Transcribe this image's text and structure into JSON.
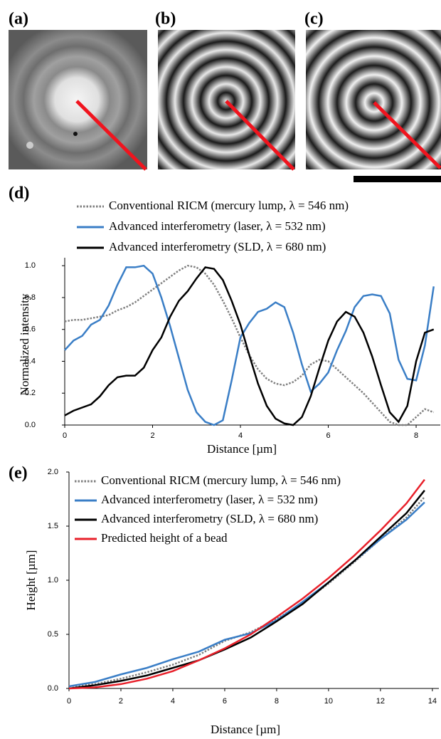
{
  "panel_labels": [
    "(a)",
    "(b)",
    "(c)",
    "(d)",
    "(e)"
  ],
  "chart_data": [
    {
      "type": "line",
      "x_label": "Distance [µm]",
      "y_label": "Normalized intensity",
      "x": [
        0,
        0.2,
        0.4,
        0.6,
        0.8,
        1.0,
        1.2,
        1.4,
        1.6,
        1.8,
        2.0,
        2.2,
        2.4,
        2.6,
        2.8,
        3.0,
        3.2,
        3.4,
        3.6,
        3.8,
        4.0,
        4.2,
        4.4,
        4.6,
        4.8,
        5.0,
        5.2,
        5.4,
        5.6,
        5.8,
        6.0,
        6.2,
        6.4,
        6.6,
        6.8,
        7.0,
        7.2,
        7.4,
        7.6,
        7.8,
        8.0,
        8.2,
        8.4
      ],
      "series": [
        {
          "name": "Conventional RICM (mercury lump, λ = 546 nm)",
          "color": "#808080",
          "style": "dotted",
          "values": [
            0.65,
            0.66,
            0.66,
            0.67,
            0.68,
            0.69,
            0.72,
            0.74,
            0.77,
            0.81,
            0.85,
            0.89,
            0.93,
            0.97,
            1.0,
            0.99,
            0.95,
            0.88,
            0.78,
            0.67,
            0.55,
            0.44,
            0.35,
            0.29,
            0.26,
            0.25,
            0.27,
            0.31,
            0.38,
            0.41,
            0.4,
            0.35,
            0.3,
            0.25,
            0.2,
            0.14,
            0.08,
            0.02,
            0.0,
            0.0,
            0.05,
            0.1,
            0.08
          ]
        },
        {
          "name": "Advanced interferometry (laser, λ = 532 nm)",
          "color": "#3a7ec6",
          "style": "solid",
          "values": [
            0.47,
            0.53,
            0.56,
            0.63,
            0.66,
            0.75,
            0.88,
            0.99,
            0.99,
            1.0,
            0.95,
            0.8,
            0.62,
            0.42,
            0.22,
            0.08,
            0.02,
            0.0,
            0.03,
            0.28,
            0.55,
            0.64,
            0.71,
            0.73,
            0.77,
            0.74,
            0.58,
            0.38,
            0.21,
            0.26,
            0.33,
            0.47,
            0.59,
            0.74,
            0.81,
            0.82,
            0.81,
            0.7,
            0.41,
            0.29,
            0.28,
            0.5,
            0.87
          ]
        },
        {
          "name": "Advanced interferometry (SLD, λ = 680 nm)",
          "color": "#000000",
          "style": "solid",
          "values": [
            0.06,
            0.09,
            0.11,
            0.13,
            0.18,
            0.25,
            0.3,
            0.31,
            0.31,
            0.36,
            0.47,
            0.55,
            0.68,
            0.78,
            0.84,
            0.92,
            0.99,
            0.98,
            0.91,
            0.78,
            0.63,
            0.44,
            0.26,
            0.12,
            0.04,
            0.01,
            0.0,
            0.05,
            0.18,
            0.36,
            0.53,
            0.65,
            0.71,
            0.68,
            0.58,
            0.43,
            0.25,
            0.08,
            0.02,
            0.12,
            0.4,
            0.58,
            0.6
          ]
        }
      ],
      "xlim": [
        0,
        8.55
      ],
      "ylim": [
        0,
        1.05
      ],
      "xticks": [
        0,
        2,
        4,
        6,
        8
      ],
      "yticks": [
        {
          "value": 0,
          "label": "0.0"
        },
        0.2,
        0.4,
        0.6,
        0.8,
        {
          "value": 1,
          "label": "1.0"
        }
      ]
    },
    {
      "type": "line",
      "x_label": "Distance [µm]",
      "y_label": "Height [µm]",
      "x": [
        0,
        1,
        2,
        3,
        4,
        5,
        6,
        7,
        8,
        9,
        10,
        11,
        12,
        13,
        13.7
      ],
      "series": [
        {
          "name": "Conventional RICM (mercury lump, λ = 546 nm)",
          "color": "#808080",
          "style": "dotted",
          "values": [
            0.02,
            0.04,
            0.09,
            0.15,
            0.22,
            0.31,
            0.44,
            0.52,
            0.64,
            0.79,
            0.97,
            1.17,
            1.38,
            1.58,
            1.77
          ]
        },
        {
          "name": "Advanced interferometry (laser, λ = 532 nm)",
          "color": "#3a7ec6",
          "style": "solid",
          "values": [
            0.02,
            0.06,
            0.13,
            0.19,
            0.27,
            0.34,
            0.45,
            0.51,
            0.63,
            0.8,
            0.98,
            1.18,
            1.38,
            1.56,
            1.72
          ]
        },
        {
          "name": "Advanced interferometry (SLD, λ = 680 nm)",
          "color": "#000000",
          "style": "solid",
          "values": [
            0,
            0.03,
            0.07,
            0.12,
            0.19,
            0.26,
            0.36,
            0.47,
            0.62,
            0.78,
            0.98,
            1.18,
            1.4,
            1.62,
            1.83
          ]
        },
        {
          "name": "Predicted height of a bead",
          "color": "#e8202a",
          "style": "solid",
          "values": [
            0,
            0.01,
            0.04,
            0.09,
            0.16,
            0.26,
            0.37,
            0.5,
            0.66,
            0.83,
            1.02,
            1.23,
            1.46,
            1.71,
            1.93
          ]
        }
      ],
      "xlim": [
        0,
        14.25
      ],
      "ylim": [
        0,
        2
      ],
      "xticks": [
        0,
        2,
        4,
        6,
        8,
        10,
        12,
        14
      ],
      "yticks": [
        {
          "value": 0,
          "label": "0.0"
        },
        0.5,
        {
          "value": 1,
          "label": "1.0"
        },
        1.5,
        {
          "value": 2,
          "label": "2.0"
        }
      ]
    }
  ]
}
